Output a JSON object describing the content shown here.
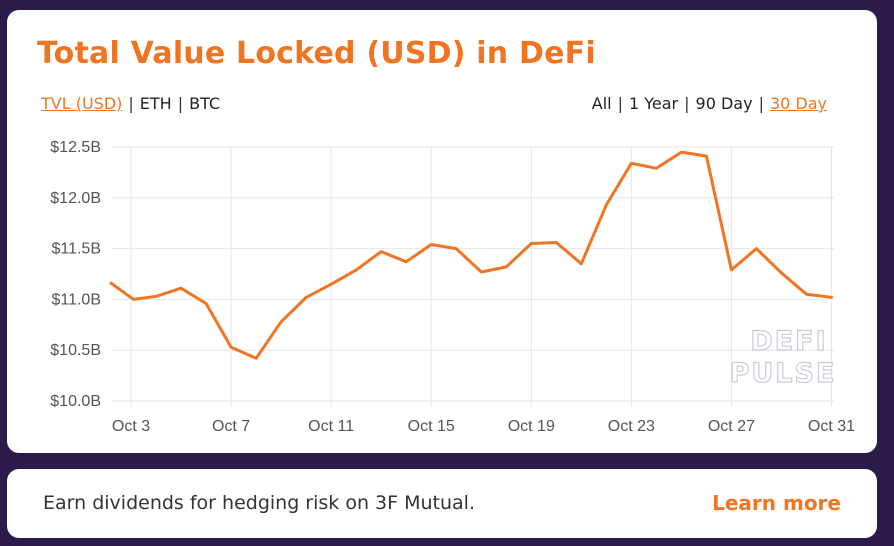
{
  "header": {
    "title": "Total Value Locked (USD) in DeFi"
  },
  "metric_toggles": [
    {
      "label": "TVL (USD)",
      "active": true
    },
    {
      "label": "ETH",
      "active": false
    },
    {
      "label": "BTC",
      "active": false
    }
  ],
  "range_toggles": [
    {
      "label": "All",
      "active": false
    },
    {
      "label": "1 Year",
      "active": false
    },
    {
      "label": "90 Day",
      "active": false
    },
    {
      "label": "30 Day",
      "active": true
    }
  ],
  "watermark": {
    "line1": "DEFI",
    "line2": "PULSE"
  },
  "colors": {
    "accent": "#f07522",
    "background": "#2b1b4b",
    "grid": "#e6e6e6"
  },
  "chart_data": {
    "type": "line",
    "title": "Total Value Locked (USD) in DeFi",
    "xlabel": "",
    "ylabel": "",
    "ylim": [
      10.0,
      12.5
    ],
    "y_ticks": [
      10.0,
      10.5,
      11.0,
      11.5,
      12.0,
      12.5
    ],
    "y_tick_labels": [
      "$10.0B",
      "$10.5B",
      "$11.0B",
      "$11.5B",
      "$12.0B",
      "$12.5B"
    ],
    "x_ticks": [
      "Oct 3",
      "Oct 7",
      "Oct 11",
      "Oct 15",
      "Oct 19",
      "Oct 23",
      "Oct 27",
      "Oct 31"
    ],
    "x_tick_days": [
      3,
      7,
      11,
      15,
      19,
      23,
      27,
      31
    ],
    "xlim": [
      2.2,
      31.1
    ],
    "grid": true,
    "series": [
      {
        "name": "",
        "color": "#f07522",
        "x": [
          2.2,
          3.1,
          4,
          5,
          6,
          7,
          8,
          9,
          10,
          11,
          12,
          13,
          14,
          15,
          16,
          17,
          18,
          19,
          20,
          21,
          22,
          23,
          24,
          25,
          26,
          27,
          28,
          29,
          30,
          31
        ],
        "values": [
          11.16,
          11.0,
          11.03,
          11.11,
          10.96,
          10.53,
          10.42,
          10.78,
          11.02,
          11.15,
          11.29,
          11.47,
          11.37,
          11.54,
          11.5,
          11.27,
          11.32,
          11.55,
          11.56,
          11.35,
          11.93,
          12.34,
          12.29,
          12.45,
          12.41,
          11.29,
          11.5,
          11.26,
          11.05,
          11.02
        ]
      }
    ]
  },
  "promo": {
    "text": "Earn dividends for hedging risk on 3F Mutual.",
    "link_label": "Learn more"
  }
}
